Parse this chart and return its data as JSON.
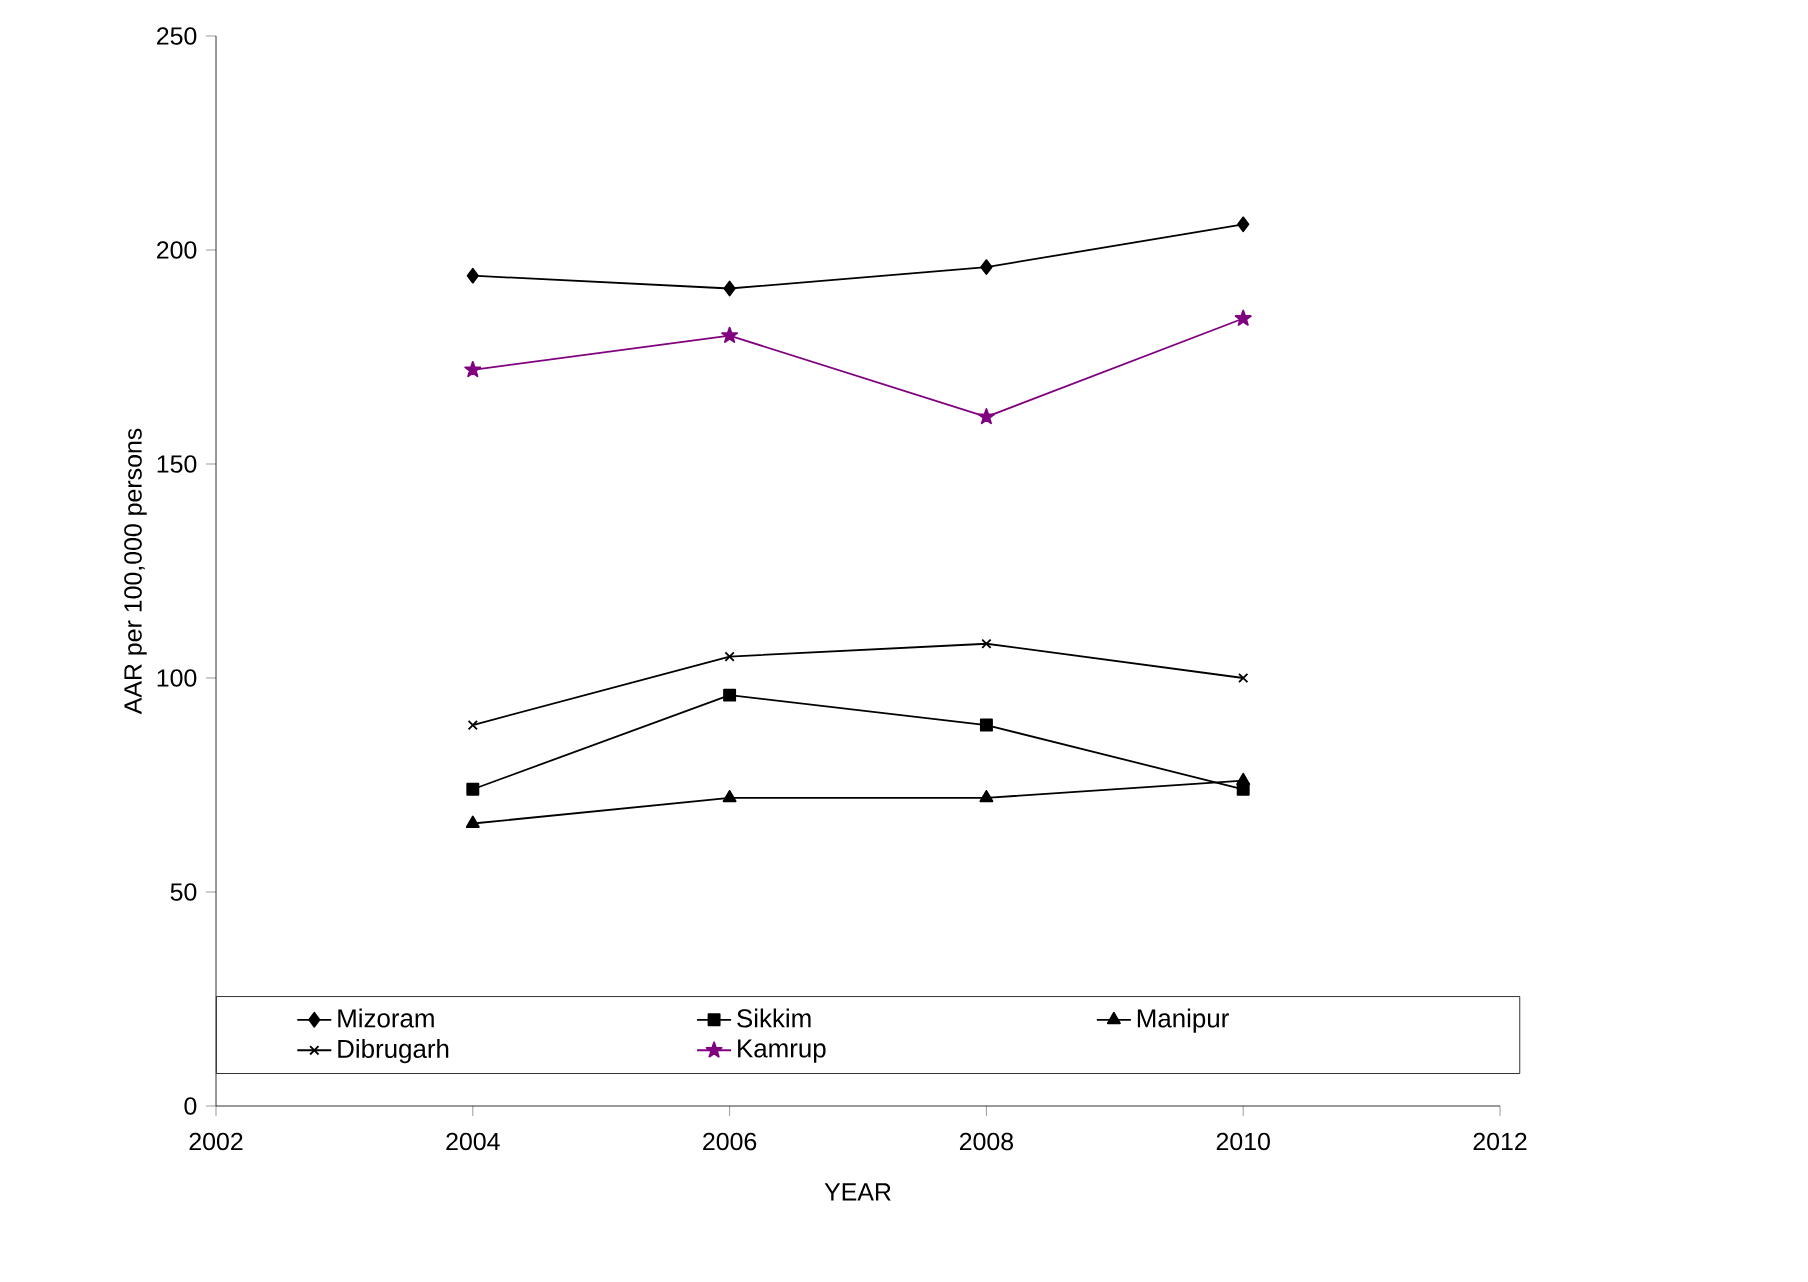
{
  "chart_data": {
    "type": "line",
    "xlabel": "YEAR",
    "ylabel": "AAR  per 100,000 persons",
    "x": [
      2004,
      2006,
      2008,
      2010
    ],
    "xlim": [
      2002,
      2012
    ],
    "xticks": [
      2002,
      2004,
      2006,
      2008,
      2010,
      2012
    ],
    "ylim": [
      0,
      250
    ],
    "yticks": [
      0,
      50,
      100,
      150,
      200,
      250
    ],
    "grid": false,
    "legend": "bottom",
    "line_style": "solid",
    "series": [
      {
        "name": "Mizoram",
        "color": "#000000",
        "marker": "diamond",
        "values": [
          194,
          191,
          196,
          206
        ]
      },
      {
        "name": "Sikkim",
        "color": "#000000",
        "marker": "square",
        "values": [
          74,
          96,
          89,
          74
        ]
      },
      {
        "name": "Manipur",
        "color": "#000000",
        "marker": "triangle",
        "values": [
          66,
          72,
          72,
          76
        ]
      },
      {
        "name": "Dibrugarh",
        "color": "#000000",
        "marker": "cross",
        "values": [
          89,
          105,
          108,
          100
        ]
      },
      {
        "name": "Kamrup",
        "color": "#800080",
        "marker": "star",
        "values": [
          172,
          180,
          161,
          184
        ]
      }
    ]
  }
}
